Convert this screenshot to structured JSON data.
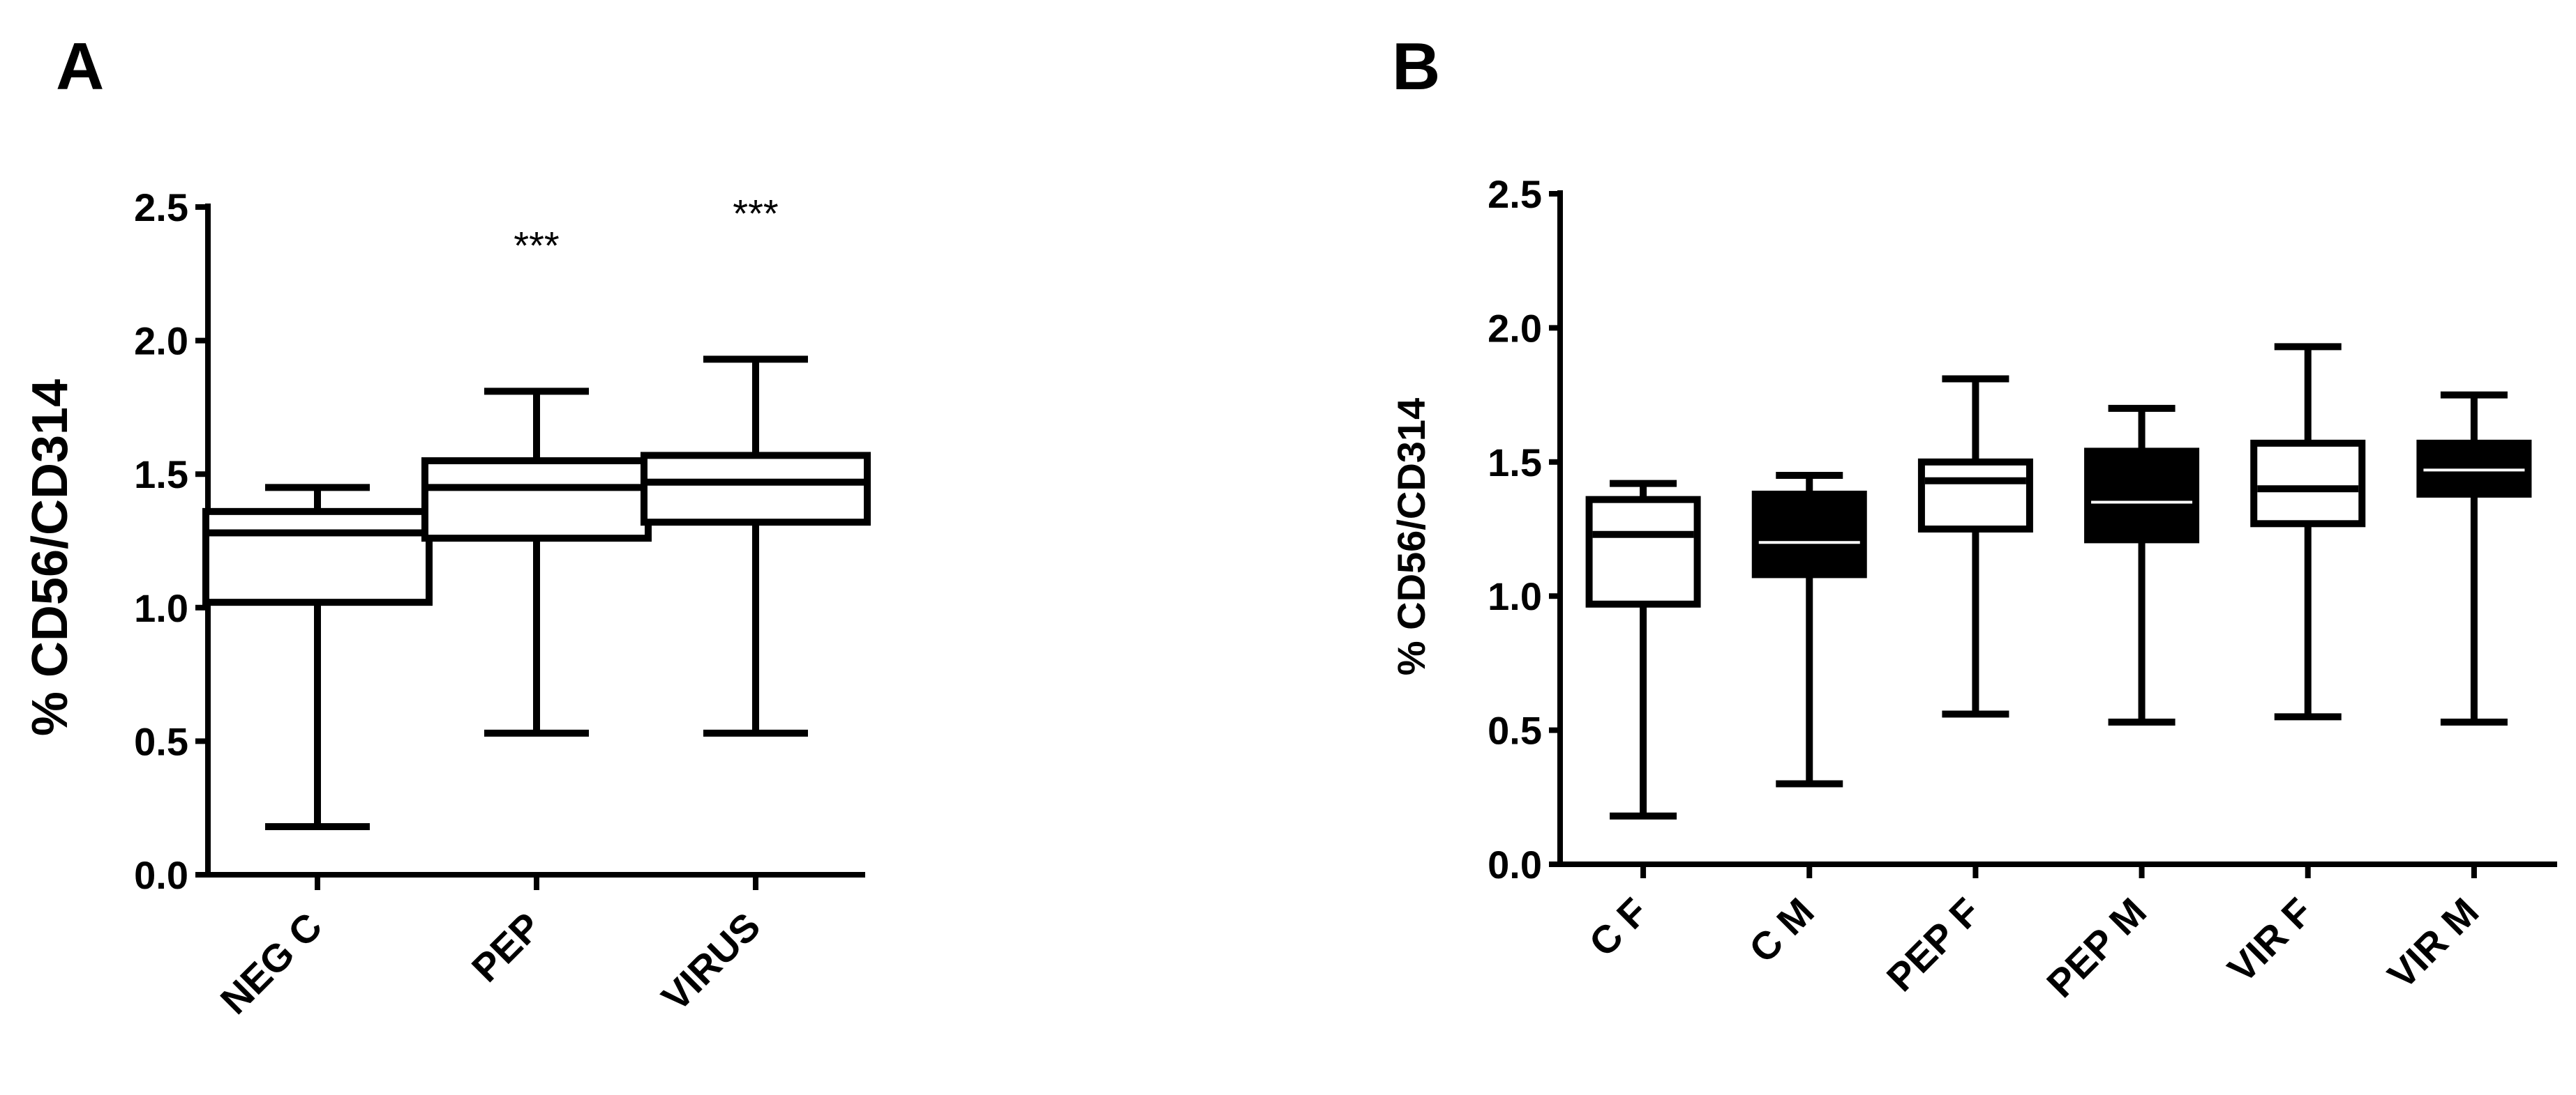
{
  "colors": {
    "axis": "#000000",
    "open_box": "#ffffff",
    "filled_box": "#000000",
    "median_on_filled": "#ffffff"
  },
  "chart_data": [
    {
      "panel_label": "A",
      "type": "box",
      "title": "",
      "xlabel": "",
      "ylabel": "% CD56/CD314",
      "ylim": [
        0,
        2.5
      ],
      "yticks": [
        "0.0",
        "0.5",
        "1.0",
        "1.5",
        "2.0",
        "2.5"
      ],
      "grid": false,
      "categories": [
        "NEG C",
        "PEP",
        "VIRUS"
      ],
      "boxes": [
        {
          "category": "NEG C",
          "min": 0.18,
          "q1": 1.02,
          "median": 1.28,
          "q3": 1.36,
          "max": 1.45,
          "fill": "open",
          "annotation": ""
        },
        {
          "category": "PEP",
          "min": 0.53,
          "q1": 1.26,
          "median": 1.45,
          "q3": 1.55,
          "max": 1.81,
          "fill": "open",
          "annotation": "***"
        },
        {
          "category": "VIRUS",
          "min": 0.53,
          "q1": 1.32,
          "median": 1.47,
          "q3": 1.57,
          "max": 1.93,
          "fill": "open",
          "annotation": "***"
        }
      ]
    },
    {
      "panel_label": "B",
      "type": "box",
      "title": "",
      "xlabel": "",
      "ylabel": "% CD56/CD314",
      "ylim": [
        0,
        2.5
      ],
      "yticks": [
        "0.0",
        "0.5",
        "1.0",
        "1.5",
        "2.0",
        "2.5"
      ],
      "grid": false,
      "categories": [
        "C F",
        "C M",
        "PEP F",
        "PEP M",
        "VIR F",
        "VIR M"
      ],
      "boxes": [
        {
          "category": "C F",
          "min": 0.18,
          "q1": 0.97,
          "median": 1.23,
          "q3": 1.36,
          "max": 1.42,
          "fill": "open"
        },
        {
          "category": "C M",
          "min": 0.3,
          "q1": 1.08,
          "median": 1.2,
          "q3": 1.38,
          "max": 1.45,
          "fill": "filled"
        },
        {
          "category": "PEP F",
          "min": 0.56,
          "q1": 1.25,
          "median": 1.43,
          "q3": 1.5,
          "max": 1.81,
          "fill": "open"
        },
        {
          "category": "PEP M",
          "min": 0.53,
          "q1": 1.21,
          "median": 1.35,
          "q3": 1.54,
          "max": 1.7,
          "fill": "filled"
        },
        {
          "category": "VIR F",
          "min": 0.55,
          "q1": 1.27,
          "median": 1.4,
          "q3": 1.57,
          "max": 1.93,
          "fill": "open"
        },
        {
          "category": "VIR M",
          "min": 0.53,
          "q1": 1.38,
          "median": 1.47,
          "q3": 1.57,
          "max": 1.75,
          "fill": "filled"
        }
      ]
    }
  ]
}
